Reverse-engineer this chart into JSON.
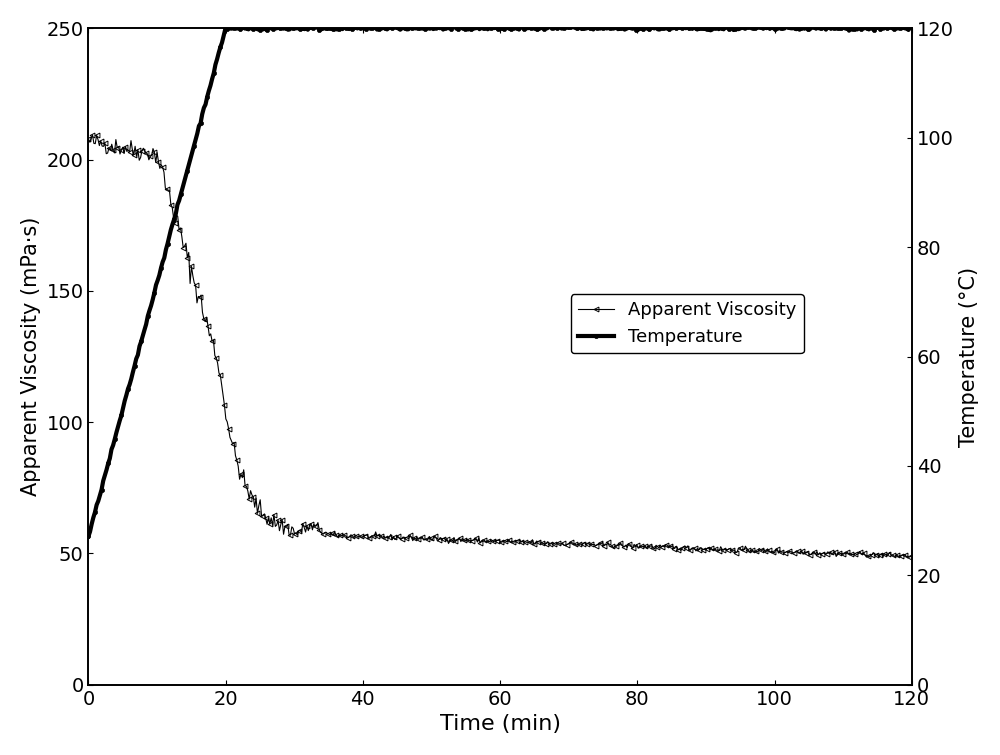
{
  "xlabel": "Time (min)",
  "ylabel_left": "Apparent Viscosity (mPa·s)",
  "ylabel_right": "Temperature (°C)",
  "xlim": [
    0,
    120
  ],
  "ylim_left": [
    0,
    250
  ],
  "ylim_right": [
    0,
    120
  ],
  "xticks": [
    0,
    20,
    40,
    60,
    80,
    100,
    120
  ],
  "yticks_left": [
    0,
    50,
    100,
    150,
    200,
    250
  ],
  "yticks_right": [
    0,
    20,
    40,
    60,
    80,
    100,
    120
  ],
  "legend_labels": [
    "Apparent Viscosity",
    "Temperature"
  ],
  "line_color": "#000000",
  "background_color": "#ffffff",
  "xlabel_fontsize": 16,
  "ylabel_fontsize": 15,
  "tick_fontsize": 14,
  "legend_fontsize": 13
}
